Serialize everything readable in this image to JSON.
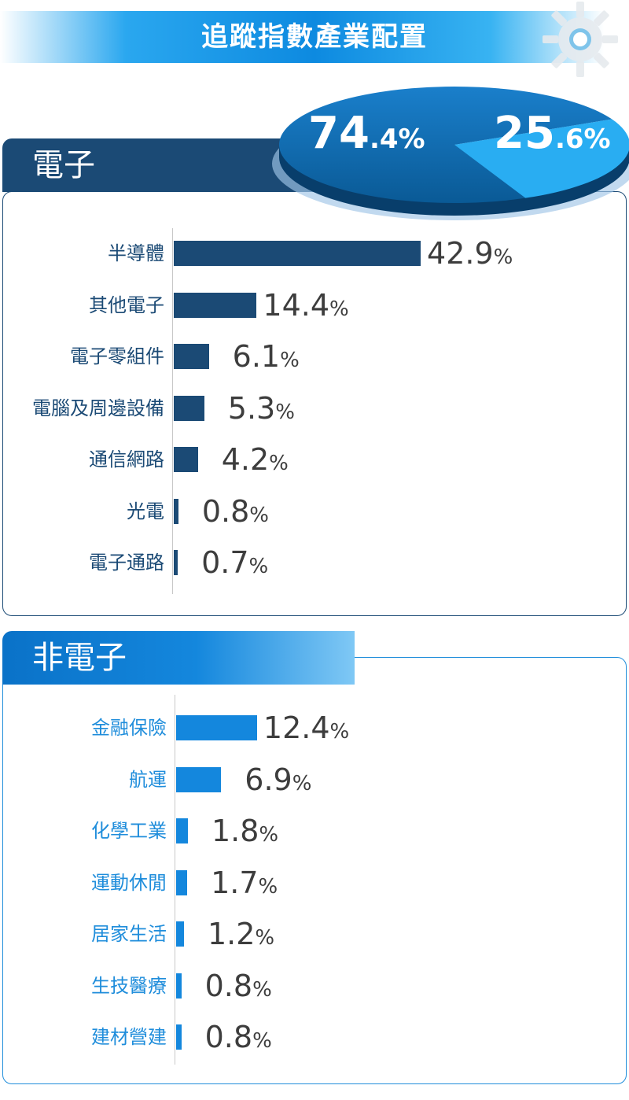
{
  "header": {
    "title": "追蹤指數產業配置"
  },
  "pie": {
    "slices": [
      {
        "name": "電子",
        "value": 74.4,
        "color": "#0b5c99"
      },
      {
        "name": "非電子",
        "value": 25.6,
        "color": "#29adf2"
      }
    ],
    "percent_sign": "%"
  },
  "sections": {
    "electronics": {
      "title": "電子"
    },
    "non_electronics": {
      "title": "非電子"
    }
  },
  "chart_data": [
    {
      "type": "bar",
      "title": "電子",
      "orientation": "horizontal",
      "categories": [
        "半導體",
        "其他電子",
        "電子零組件",
        "電腦及周邊設備",
        "通信網路",
        "光電",
        "電子通路"
      ],
      "values": [
        42.9,
        14.4,
        6.1,
        5.3,
        4.2,
        0.8,
        0.7
      ],
      "value_labels": [
        "42.9",
        "14.4",
        "6.1",
        "5.3",
        "4.2",
        "0.8",
        "0.7"
      ],
      "unit": "%",
      "color": "#1b4a75"
    },
    {
      "type": "bar",
      "title": "非電子",
      "orientation": "horizontal",
      "categories": [
        "金融保險",
        "航運",
        "化學工業",
        "運動休閒",
        "居家生活",
        "生技醫療",
        "建材營建"
      ],
      "values": [
        12.4,
        6.9,
        1.8,
        1.7,
        1.2,
        0.8,
        0.8
      ],
      "value_labels": [
        "12.4",
        "6.9",
        "1.8",
        "1.7",
        "1.2",
        "0.8",
        "0.8"
      ],
      "unit": "%",
      "color": "#1487dd"
    }
  ]
}
